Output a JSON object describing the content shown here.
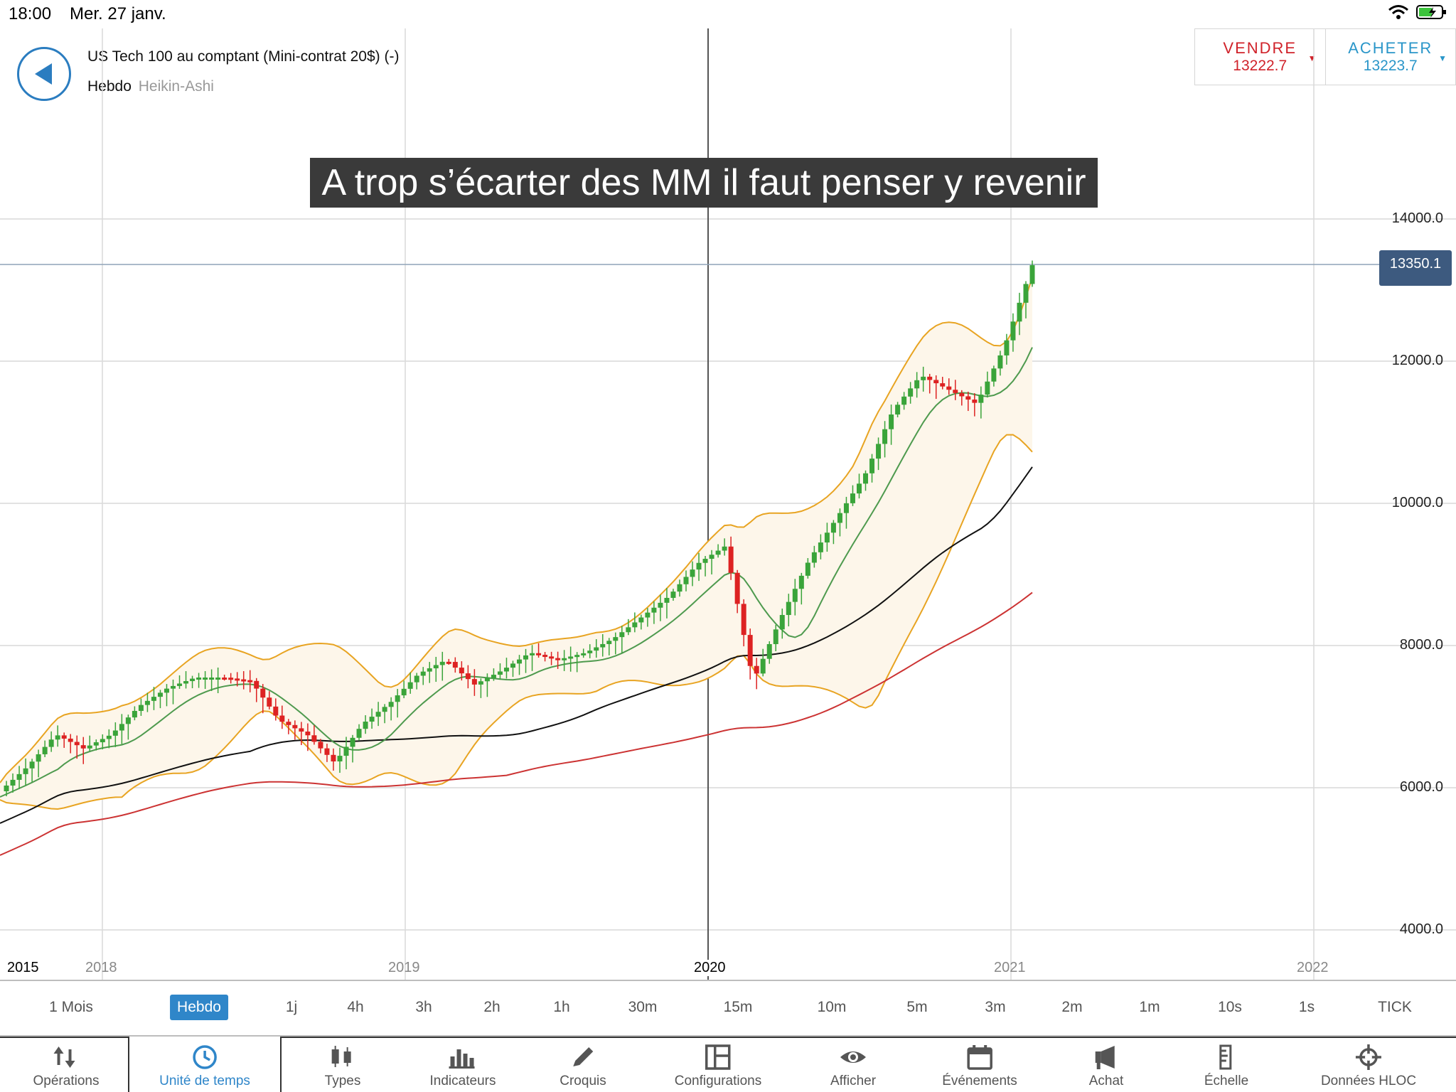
{
  "status": {
    "time": "18:00",
    "date": "Mer. 27 janv."
  },
  "instrument": {
    "name": "US Tech 100 au comptant (Mini-contrat 20$) (-)",
    "period": "Hebdo",
    "chart_type": "Heikin-Ashi"
  },
  "trade": {
    "sell_label": "VENDRE",
    "sell_price": "13222.7",
    "buy_label": "ACHETER",
    "buy_price": "13223.7"
  },
  "annotation": "A trop s’écarter des MM il faut penser y revenir",
  "current_price_tag": "13350.1",
  "y_axis": [
    "14000.0",
    "12000.0",
    "10000.0",
    "8000.0",
    "6000.0",
    "4000.0"
  ],
  "x_axis": {
    "left_year": "2015",
    "labels": [
      "2018",
      "2019",
      "2020",
      "2021",
      "2022"
    ]
  },
  "timeframes": [
    "1 Mois",
    "Hebdo",
    "1j",
    "4h",
    "3h",
    "2h",
    "1h",
    "30m",
    "15m",
    "10m",
    "5m",
    "3m",
    "2m",
    "1m",
    "10s",
    "1s",
    "TICK"
  ],
  "active_timeframe": "Hebdo",
  "toolbar": [
    {
      "label": "Opérations",
      "icon": "arrows-updown-icon"
    },
    {
      "label": "Unité de temps",
      "icon": "clock-icon"
    },
    {
      "label": "Types",
      "icon": "candles-icon"
    },
    {
      "label": "Indicateurs",
      "icon": "bar-chart-icon"
    },
    {
      "label": "Croquis",
      "icon": "pencil-icon"
    },
    {
      "label": "Configurations",
      "icon": "layout-icon"
    },
    {
      "label": "Afficher",
      "icon": "eye-icon"
    },
    {
      "label": "Événements",
      "icon": "calendar-icon"
    },
    {
      "label": "Achat",
      "icon": "megaphone-icon"
    },
    {
      "label": "Échelle",
      "icon": "scale-icon"
    },
    {
      "label": "Données HLOC",
      "icon": "crosshair-icon"
    }
  ],
  "colors": {
    "up": "#3aa43a",
    "down": "#dd2222",
    "bollinger": "#e8a422",
    "ma_short": "#4e9a4e",
    "ma_mid": "#111111",
    "ma_long": "#cc3333",
    "accent": "#2f86c9"
  },
  "chart_data": {
    "type": "candlestick",
    "title": "",
    "ylim": [
      4000,
      14000
    ],
    "x": [
      "2017-12",
      "2018-01",
      "2018-02",
      "2018-03",
      "2018-04",
      "2018-05",
      "2018-06",
      "2018-07",
      "2018-08",
      "2018-09",
      "2018-10",
      "2018-11",
      "2018-12",
      "2019-01",
      "2019-02",
      "2019-03",
      "2019-04",
      "2019-05",
      "2019-06",
      "2019-07",
      "2019-08",
      "2019-09",
      "2019-10",
      "2019-11",
      "2019-12",
      "2020-01",
      "2020-02",
      "2020-03",
      "2020-04",
      "2020-05",
      "2020-06",
      "2020-07",
      "2020-08",
      "2020-09",
      "2020-10",
      "2020-11",
      "2020-12",
      "2021-01"
    ],
    "close": [
      5950,
      6300,
      6750,
      6550,
      6750,
      7150,
      7400,
      7550,
      7550,
      7500,
      6950,
      6750,
      6350,
      6900,
      7200,
      7600,
      7800,
      7450,
      7650,
      7900,
      7800,
      7900,
      8100,
      8400,
      8700,
      9150,
      9400,
      7500,
      8400,
      9200,
      9800,
      10400,
      11300,
      11800,
      11600,
      11400,
      12200,
      13350
    ],
    "series": [
      {
        "name": "",
        "kind": "bollinger"
      },
      {
        "name": "",
        "kind": "moving-average-short"
      },
      {
        "name": "",
        "kind": "moving-average-mid"
      },
      {
        "name": "",
        "kind": "moving-average-long"
      }
    ]
  }
}
